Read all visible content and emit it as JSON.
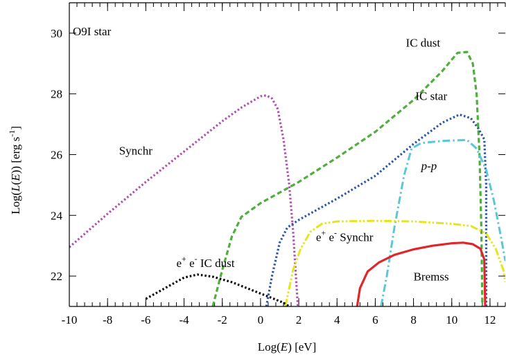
{
  "chart_data": {
    "type": "line",
    "title": "",
    "xlabel": {
      "pre": "Log(",
      "em": "E",
      "post": ") [eV]"
    },
    "ylabel": {
      "pre": "Log(",
      "em1": "L",
      "mid": "(",
      "em2": "E",
      "post": ")) [erg s",
      "sup": "-1",
      "end": "]"
    },
    "xlim": [
      -10,
      12.8
    ],
    "ylim": [
      21.0,
      31.0
    ],
    "x_ticks": [
      -10,
      -8,
      -6,
      -4,
      -2,
      0,
      2,
      4,
      6,
      8,
      10,
      12
    ],
    "y_ticks": [
      22,
      24,
      26,
      28,
      30
    ],
    "x_minor_step": 0.4,
    "grid": false,
    "legend": "none",
    "source_label": "O9I star",
    "series": [
      {
        "name": "Synchr",
        "color": "#b04fb0",
        "style": "dotted",
        "points": [
          [
            -10,
            22.95
          ],
          [
            -9,
            23.5
          ],
          [
            -8,
            24.05
          ],
          [
            -6,
            25.1
          ],
          [
            -4,
            26.1
          ],
          [
            -2,
            27.1
          ],
          [
            -1,
            27.55
          ],
          [
            0,
            27.92
          ],
          [
            0.3,
            27.95
          ],
          [
            0.6,
            27.85
          ],
          [
            0.9,
            27.5
          ],
          [
            1.2,
            26.5
          ],
          [
            1.5,
            25.0
          ],
          [
            1.7,
            23.5
          ],
          [
            1.85,
            22.0
          ],
          [
            1.95,
            21.0
          ]
        ]
      },
      {
        "name": "IC dust",
        "color": "#4fae3c",
        "style": "dashed",
        "points": [
          [
            -2.5,
            21.0
          ],
          [
            -2.0,
            22.2
          ],
          [
            -1.5,
            23.3
          ],
          [
            -1.0,
            23.95
          ],
          [
            0,
            24.4
          ],
          [
            1,
            24.75
          ],
          [
            2,
            25.1
          ],
          [
            4,
            25.9
          ],
          [
            6,
            26.75
          ],
          [
            8,
            27.8
          ],
          [
            9.5,
            28.75
          ],
          [
            10.3,
            29.35
          ],
          [
            10.8,
            29.38
          ],
          [
            11.1,
            29.0
          ],
          [
            11.3,
            28.0
          ],
          [
            11.45,
            26.0
          ],
          [
            11.55,
            23.5
          ],
          [
            11.6,
            21.0
          ]
        ]
      },
      {
        "name": "IC star",
        "color": "#2a55a8",
        "style": "dotted",
        "points": [
          [
            0.3,
            21.0
          ],
          [
            0.6,
            22.0
          ],
          [
            1.0,
            23.1
          ],
          [
            1.4,
            23.6
          ],
          [
            2,
            23.85
          ],
          [
            4,
            24.55
          ],
          [
            6,
            25.3
          ],
          [
            8,
            26.35
          ],
          [
            9.5,
            27.05
          ],
          [
            10.4,
            27.32
          ],
          [
            11.0,
            27.2
          ],
          [
            11.4,
            26.85
          ],
          [
            11.7,
            26.5
          ],
          [
            11.8,
            25.0
          ],
          [
            11.8,
            21.0
          ]
        ]
      },
      {
        "name": "p-p",
        "color": "#5bc6d8",
        "style": "dashdot",
        "points": [
          [
            6.3,
            21.0
          ],
          [
            6.6,
            22.0
          ],
          [
            7.0,
            23.6
          ],
          [
            7.5,
            25.3
          ],
          [
            7.9,
            26.2
          ],
          [
            8.4,
            26.38
          ],
          [
            9.5,
            26.45
          ],
          [
            10.8,
            26.48
          ],
          [
            11.3,
            26.2
          ],
          [
            11.8,
            25.5
          ],
          [
            12.2,
            24.5
          ],
          [
            12.6,
            23.2
          ],
          [
            12.8,
            22.5
          ]
        ]
      },
      {
        "name": "e+ e- Synchr",
        "color": "#e5e51a",
        "style": "dashdotdot",
        "points": [
          [
            1.3,
            21.0
          ],
          [
            1.7,
            22.2
          ],
          [
            2.1,
            22.9
          ],
          [
            2.6,
            23.45
          ],
          [
            3.2,
            23.72
          ],
          [
            4,
            23.8
          ],
          [
            6,
            23.82
          ],
          [
            8,
            23.8
          ],
          [
            10,
            23.72
          ],
          [
            11.0,
            23.65
          ],
          [
            11.8,
            23.4
          ],
          [
            12.3,
            22.9
          ],
          [
            12.7,
            22.2
          ],
          [
            12.8,
            21.8
          ]
        ]
      },
      {
        "name": "Bremss",
        "color": "#e0262c",
        "style": "solid",
        "points": [
          [
            5.05,
            21.0
          ],
          [
            5.2,
            21.6
          ],
          [
            5.6,
            22.15
          ],
          [
            6.2,
            22.45
          ],
          [
            7,
            22.7
          ],
          [
            8,
            22.88
          ],
          [
            9,
            23.0
          ],
          [
            10,
            23.08
          ],
          [
            10.6,
            23.1
          ],
          [
            11.1,
            23.05
          ],
          [
            11.5,
            22.9
          ],
          [
            11.7,
            22.55
          ],
          [
            11.75,
            21.0
          ]
        ]
      },
      {
        "name": "e+ e- IC dust",
        "color": "#000000",
        "style": "dotted",
        "points": [
          [
            -6.0,
            21.25
          ],
          [
            -5,
            21.6
          ],
          [
            -4,
            21.95
          ],
          [
            -3.3,
            22.05
          ],
          [
            -2.5,
            21.98
          ],
          [
            -1.5,
            21.8
          ],
          [
            -0.5,
            21.55
          ],
          [
            0.5,
            21.3
          ],
          [
            1.2,
            21.12
          ],
          [
            1.5,
            21.0
          ]
        ]
      }
    ],
    "annotations": [
      {
        "name": "synchr-label",
        "text": "Synchr",
        "x": -7.4,
        "y": 26.0
      },
      {
        "name": "ic-dust-label",
        "text": "IC dust",
        "x": 7.6,
        "y": 29.55
      },
      {
        "name": "ic-star-label",
        "text": "IC star",
        "x": 8.1,
        "y": 27.8
      },
      {
        "name": "pp-label",
        "text": "p-p",
        "x": 8.4,
        "y": 25.5
      },
      {
        "name": "ee-synchr-label",
        "text": "e+ e- Synchr",
        "x": 2.9,
        "y": 23.15
      },
      {
        "name": "bremss-label",
        "text": "Bremss",
        "x": 8.0,
        "y": 21.85
      },
      {
        "name": "ee-ic-dust-label",
        "text": "e+ e- IC dust",
        "x": -4.4,
        "y": 22.3
      }
    ]
  }
}
